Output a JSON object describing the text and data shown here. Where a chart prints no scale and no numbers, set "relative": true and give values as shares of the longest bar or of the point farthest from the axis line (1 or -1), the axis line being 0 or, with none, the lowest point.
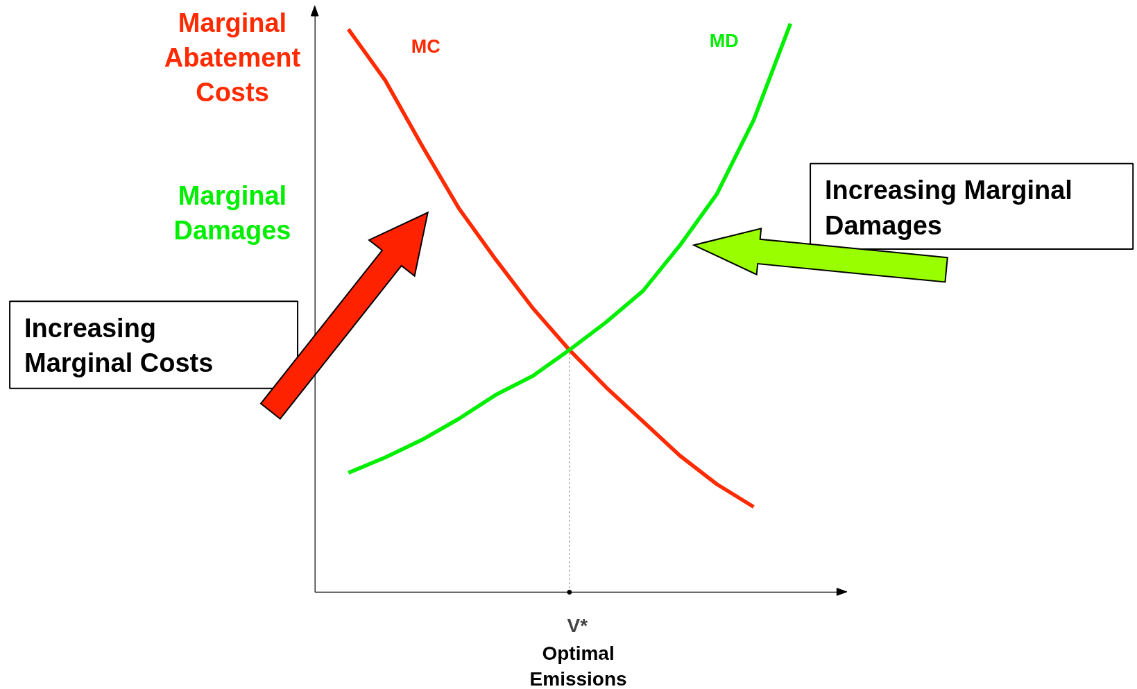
{
  "chart_data": {
    "type": "line",
    "relative": true,
    "ylabel": "Marginal Abatement Costs",
    "xlabel": "Optimal Emissions",
    "categories": [
      null,
      null,
      null,
      null,
      null,
      null,
      null,
      null,
      null,
      null,
      null,
      null,
      null
    ],
    "series": [
      {
        "name": "MC",
        "color": "#ff2a00",
        "values": [
          0.99,
          0.9,
          0.785,
          0.675,
          0.585,
          0.5,
          0.426,
          0.36,
          0.3,
          0.24,
          0.19,
          0.15,
          null
        ]
      },
      {
        "name": "MD",
        "color": "#00ee00",
        "values": [
          0.21,
          0.237,
          0.268,
          0.305,
          0.347,
          0.38,
          0.426,
          0.475,
          0.53,
          0.61,
          0.7,
          0.83,
          1.0
        ]
      }
    ],
    "annotations": [
      "Marginal Damages",
      "Increasing Marginal Costs",
      "Increasing Marginal Damages",
      "V*"
    ],
    "legend": false,
    "grid": false,
    "marker": "none",
    "line_style": "solid"
  }
}
